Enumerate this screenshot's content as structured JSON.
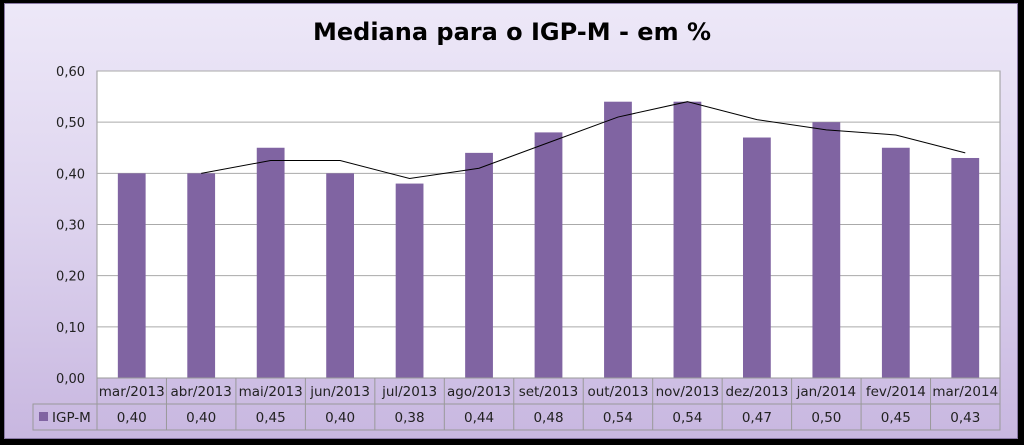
{
  "chart_data": {
    "type": "bar",
    "title": "Mediana para o IGP-M - em %",
    "categories": [
      "mar/2013",
      "abr/2013",
      "mai/2013",
      "jun/2013",
      "jul/2013",
      "ago/2013",
      "set/2013",
      "out/2013",
      "nov/2013",
      "dez/2013",
      "jan/2014",
      "fev/2014",
      "mar/2014"
    ],
    "series": [
      {
        "name": "IGP-M",
        "values": [
          0.4,
          0.4,
          0.45,
          0.4,
          0.38,
          0.44,
          0.48,
          0.54,
          0.54,
          0.47,
          0.5,
          0.45,
          0.43
        ],
        "labels": [
          "0,40",
          "0,40",
          "0,45",
          "0,40",
          "0,38",
          "0,44",
          "0,48",
          "0,54",
          "0,54",
          "0,47",
          "0,50",
          "0,45",
          "0,43"
        ],
        "color": "#8064a2"
      }
    ],
    "trendline": {
      "type": "moving average",
      "period": 2,
      "color": "#000000"
    },
    "ylim": [
      0,
      0.6
    ],
    "yticks": [
      "0,00",
      "0,10",
      "0,20",
      "0,30",
      "0,40",
      "0,50",
      "0,60"
    ],
    "grid": true,
    "legend": "data-table",
    "xlabel": "",
    "ylabel": ""
  }
}
